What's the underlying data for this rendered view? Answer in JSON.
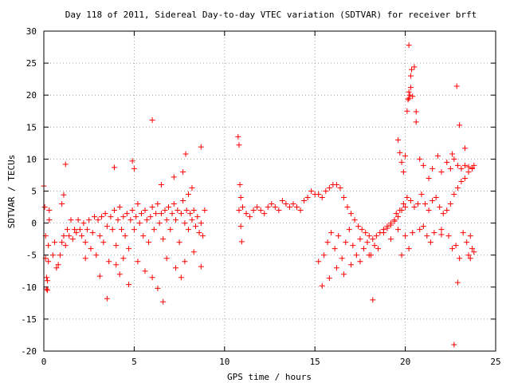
{
  "chart_data": {
    "type": "scatter",
    "title": "Day 118 of 2011, Sidereal Day-to-day VTEC variation (SDTVAR) for receiver brft",
    "xlabel": "GPS time / hours",
    "ylabel": "SDTVAR / TECUs",
    "xlim": [
      0,
      25
    ],
    "ylim": [
      -20,
      30
    ],
    "xticks": [
      "0",
      "5",
      "10",
      "15",
      "20",
      "25"
    ],
    "yticks": [
      "-20",
      "-15",
      "-10",
      "-5",
      "0",
      "5",
      "10",
      "15",
      "20",
      "25",
      "30"
    ],
    "grid": true,
    "marker": "+",
    "color": "#ff0000",
    "series": [
      {
        "name": "",
        "points": [
          [
            0.0,
            5.8
          ],
          [
            0.05,
            2.5
          ],
          [
            0.1,
            -2.0
          ],
          [
            0.1,
            -5.5
          ],
          [
            0.15,
            -8.5
          ],
          [
            0.15,
            -10.3
          ],
          [
            0.2,
            -10.5
          ],
          [
            0.2,
            -9.0
          ],
          [
            0.25,
            -6.0
          ],
          [
            0.25,
            -3.5
          ],
          [
            0.3,
            0.5
          ],
          [
            0.3,
            2.0
          ],
          [
            0.5,
            -5.0
          ],
          [
            0.6,
            -3.0
          ],
          [
            0.7,
            -7.0
          ],
          [
            0.8,
            -6.5
          ],
          [
            0.9,
            -5.0
          ],
          [
            1.0,
            -3.0
          ],
          [
            1.1,
            -2.0
          ],
          [
            1.2,
            -3.5
          ],
          [
            1.3,
            -1.0
          ],
          [
            1.4,
            -2.0
          ],
          [
            1.5,
            0.5
          ],
          [
            1.6,
            -2.5
          ],
          [
            1.7,
            -1.0
          ],
          [
            1.8,
            -1.5
          ],
          [
            1.9,
            0.5
          ],
          [
            2.0,
            -1.0
          ],
          [
            2.1,
            -2.0
          ],
          [
            2.2,
            0.0
          ],
          [
            2.3,
            -3.0
          ],
          [
            2.4,
            -1.0
          ],
          [
            2.5,
            0.5
          ],
          [
            2.6,
            -4.0
          ],
          [
            2.7,
            -1.5
          ],
          [
            2.8,
            1.0
          ],
          [
            2.9,
            -5.0
          ],
          [
            3.0,
            0.5
          ],
          [
            3.1,
            -2.0
          ],
          [
            3.2,
            1.0
          ],
          [
            3.3,
            -3.0
          ],
          [
            3.4,
            1.5
          ],
          [
            3.5,
            -0.5
          ],
          [
            3.6,
            -6.0
          ],
          [
            3.7,
            1.0
          ],
          [
            3.8,
            -1.0
          ],
          [
            3.9,
            2.0
          ],
          [
            4.0,
            -3.5
          ],
          [
            4.1,
            0.5
          ],
          [
            4.2,
            2.5
          ],
          [
            4.3,
            -1.0
          ],
          [
            4.4,
            1.0
          ],
          [
            4.5,
            -2.0
          ],
          [
            4.6,
            1.5
          ],
          [
            4.7,
            -4.0
          ],
          [
            4.8,
            0.5
          ],
          [
            4.9,
            2.0
          ],
          [
            5.0,
            -1.0
          ],
          [
            5.1,
            1.0
          ],
          [
            5.2,
            3.0
          ],
          [
            5.3,
            0.0
          ],
          [
            5.4,
            1.5
          ],
          [
            5.5,
            -2.0
          ],
          [
            5.6,
            2.0
          ],
          [
            5.7,
            0.5
          ],
          [
            5.8,
            -3.0
          ],
          [
            5.9,
            1.0
          ],
          [
            6.0,
            2.5
          ],
          [
            6.1,
            -1.0
          ],
          [
            6.2,
            1.5
          ],
          [
            6.3,
            3.0
          ],
          [
            6.4,
            0.0
          ],
          [
            6.5,
            1.5
          ],
          [
            6.6,
            -2.5
          ],
          [
            6.7,
            2.0
          ],
          [
            6.8,
            0.5
          ],
          [
            6.9,
            2.5
          ],
          [
            7.0,
            -1.0
          ],
          [
            7.1,
            1.5
          ],
          [
            7.2,
            3.0
          ],
          [
            7.3,
            0.5
          ],
          [
            7.4,
            2.0
          ],
          [
            7.5,
            -3.0
          ],
          [
            7.6,
            1.5
          ],
          [
            7.7,
            3.5
          ],
          [
            7.8,
            0.0
          ],
          [
            7.9,
            2.0
          ],
          [
            8.0,
            -1.0
          ],
          [
            8.1,
            1.5
          ],
          [
            8.2,
            0.5
          ],
          [
            8.3,
            2.0
          ],
          [
            8.4,
            -0.5
          ],
          [
            8.5,
            1.0
          ],
          [
            8.6,
            -1.5
          ],
          [
            8.7,
            0.0
          ],
          [
            8.8,
            -2.0
          ],
          [
            8.9,
            2.0
          ],
          [
            1.2,
            9.2
          ],
          [
            1.0,
            3.0
          ],
          [
            1.1,
            4.4
          ],
          [
            3.9,
            8.7
          ],
          [
            4.9,
            9.7
          ],
          [
            5.0,
            8.5
          ],
          [
            6.0,
            16.1
          ],
          [
            7.2,
            7.2
          ],
          [
            7.7,
            8.0
          ],
          [
            7.85,
            10.8
          ],
          [
            8.7,
            11.9
          ],
          [
            8.2,
            5.5
          ],
          [
            8.0,
            4.5
          ],
          [
            6.5,
            6.0
          ],
          [
            2.3,
            -5.5
          ],
          [
            3.1,
            -8.3
          ],
          [
            3.5,
            -11.8
          ],
          [
            4.2,
            -8.0
          ],
          [
            4.7,
            -9.6
          ],
          [
            5.6,
            -7.5
          ],
          [
            6.0,
            -8.5
          ],
          [
            6.3,
            -10.2
          ],
          [
            6.6,
            -12.3
          ],
          [
            7.6,
            -8.5
          ],
          [
            7.8,
            -6.0
          ],
          [
            8.7,
            -6.8
          ],
          [
            4.0,
            -6.5
          ],
          [
            4.4,
            -5.5
          ],
          [
            5.2,
            -6.0
          ],
          [
            6.8,
            -5.5
          ],
          [
            7.3,
            -7.0
          ],
          [
            8.3,
            -4.5
          ],
          [
            10.75,
            13.5
          ],
          [
            10.8,
            12.2
          ],
          [
            10.85,
            6.0
          ],
          [
            10.9,
            4.0
          ],
          [
            10.9,
            -0.5
          ],
          [
            10.95,
            -2.9
          ],
          [
            10.8,
            2.0
          ],
          [
            11.0,
            2.5
          ],
          [
            11.2,
            1.5
          ],
          [
            11.4,
            1.0
          ],
          [
            11.6,
            2.0
          ],
          [
            11.8,
            2.5
          ],
          [
            12.0,
            2.0
          ],
          [
            12.2,
            1.5
          ],
          [
            12.4,
            2.5
          ],
          [
            12.6,
            3.0
          ],
          [
            12.8,
            2.5
          ],
          [
            13.0,
            2.0
          ],
          [
            13.2,
            3.5
          ],
          [
            13.4,
            3.0
          ],
          [
            13.6,
            2.5
          ],
          [
            13.8,
            3.0
          ],
          [
            14.0,
            2.5
          ],
          [
            14.2,
            2.0
          ],
          [
            14.4,
            3.5
          ],
          [
            14.6,
            4.0
          ],
          [
            14.8,
            5.0
          ],
          [
            15.0,
            4.5
          ],
          [
            15.2,
            4.5
          ],
          [
            15.4,
            4.0
          ],
          [
            15.6,
            5.0
          ],
          [
            15.8,
            5.5
          ],
          [
            16.0,
            6.0
          ],
          [
            16.2,
            6.0
          ],
          [
            16.4,
            5.5
          ],
          [
            16.6,
            4.0
          ],
          [
            16.8,
            2.5
          ],
          [
            17.0,
            1.5
          ],
          [
            17.2,
            0.5
          ],
          [
            17.4,
            -0.5
          ],
          [
            17.6,
            -1.0
          ],
          [
            17.8,
            -1.5
          ],
          [
            18.0,
            -2.0
          ],
          [
            18.2,
            -2.5
          ],
          [
            18.4,
            -2.0
          ],
          [
            18.6,
            -1.5
          ],
          [
            18.8,
            -1.0
          ],
          [
            19.0,
            -0.5
          ],
          [
            19.2,
            0.0
          ],
          [
            19.4,
            0.5
          ],
          [
            19.6,
            1.0
          ],
          [
            19.8,
            2.0
          ],
          [
            20.0,
            2.5
          ],
          [
            15.5,
            -5.0
          ],
          [
            15.7,
            -3.0
          ],
          [
            15.9,
            -1.5
          ],
          [
            16.1,
            -4.0
          ],
          [
            16.3,
            -2.0
          ],
          [
            16.5,
            -5.5
          ],
          [
            16.7,
            -3.0
          ],
          [
            16.9,
            -1.0
          ],
          [
            17.1,
            -3.5
          ],
          [
            17.3,
            -5.0
          ],
          [
            17.5,
            -2.5
          ],
          [
            17.7,
            -4.0
          ],
          [
            17.9,
            -3.0
          ],
          [
            18.1,
            -5.0
          ],
          [
            18.3,
            -3.5
          ],
          [
            18.5,
            -4.0
          ],
          [
            15.4,
            -9.8
          ],
          [
            15.8,
            -8.6
          ],
          [
            16.2,
            -7.0
          ],
          [
            17.5,
            -6.0
          ],
          [
            18.2,
            -12.0
          ],
          [
            18.0,
            -5.0
          ],
          [
            15.2,
            -6.0
          ],
          [
            16.6,
            -8.0
          ],
          [
            17.0,
            -6.5
          ],
          [
            18.8,
            -1.5
          ],
          [
            19.0,
            -0.8
          ],
          [
            19.2,
            -0.3
          ],
          [
            19.4,
            0.3
          ],
          [
            19.5,
            1.5
          ],
          [
            19.7,
            2.0
          ],
          [
            19.9,
            3.0
          ],
          [
            20.1,
            4.0
          ],
          [
            20.3,
            3.5
          ],
          [
            20.5,
            2.5
          ],
          [
            20.7,
            3.0
          ],
          [
            20.9,
            4.5
          ],
          [
            21.1,
            3.0
          ],
          [
            21.3,
            2.0
          ],
          [
            21.5,
            3.5
          ],
          [
            21.7,
            4.0
          ],
          [
            21.9,
            2.5
          ],
          [
            22.1,
            1.5
          ],
          [
            22.3,
            2.0
          ],
          [
            22.5,
            3.0
          ],
          [
            22.7,
            4.5
          ],
          [
            22.9,
            5.5
          ],
          [
            23.1,
            6.5
          ],
          [
            23.3,
            7.0
          ],
          [
            23.5,
            8.0
          ],
          [
            23.7,
            8.5
          ],
          [
            23.8,
            9.0
          ],
          [
            19.2,
            -2.5
          ],
          [
            19.6,
            -1.0
          ],
          [
            20.0,
            -2.0
          ],
          [
            20.4,
            -1.5
          ],
          [
            20.8,
            -1.0
          ],
          [
            21.2,
            -2.0
          ],
          [
            21.6,
            -1.5
          ],
          [
            22.0,
            -1.0
          ],
          [
            22.4,
            -2.0
          ],
          [
            22.8,
            -3.5
          ],
          [
            23.2,
            -1.5
          ],
          [
            23.6,
            -2.0
          ],
          [
            23.8,
            -4.5
          ],
          [
            21.0,
            -0.5
          ],
          [
            22.0,
            -1.8
          ],
          [
            19.8,
            -5.0
          ],
          [
            20.2,
            -4.0
          ],
          [
            21.4,
            -3.0
          ],
          [
            22.6,
            -4.0
          ],
          [
            23.0,
            -5.5
          ],
          [
            23.4,
            -3.0
          ],
          [
            23.7,
            -4.0
          ],
          [
            19.6,
            13.0
          ],
          [
            19.7,
            11.0
          ],
          [
            19.8,
            9.5
          ],
          [
            19.9,
            8.0
          ],
          [
            20.0,
            10.5
          ],
          [
            20.1,
            17.5
          ],
          [
            20.15,
            19.3
          ],
          [
            20.2,
            20.5
          ],
          [
            20.25,
            20.0
          ],
          [
            20.3,
            23.0
          ],
          [
            20.35,
            24.0
          ],
          [
            20.3,
            21.2
          ],
          [
            20.2,
            19.5
          ],
          [
            20.2,
            27.8
          ],
          [
            20.4,
            19.8
          ],
          [
            20.5,
            24.4
          ],
          [
            20.6,
            17.4
          ],
          [
            20.6,
            15.8
          ],
          [
            20.8,
            10.0
          ],
          [
            21.0,
            9.0
          ],
          [
            21.3,
            7.0
          ],
          [
            21.5,
            8.5
          ],
          [
            21.8,
            10.5
          ],
          [
            22.0,
            8.0
          ],
          [
            22.3,
            9.5
          ],
          [
            22.5,
            8.5
          ],
          [
            22.7,
            10.0
          ],
          [
            22.9,
            9.0
          ],
          [
            23.1,
            8.5
          ],
          [
            23.3,
            9.0
          ],
          [
            23.5,
            8.8
          ],
          [
            23.7,
            8.6
          ],
          [
            22.6,
            10.8
          ],
          [
            22.85,
            21.4
          ],
          [
            23.0,
            15.3
          ],
          [
            23.3,
            11.7
          ],
          [
            22.9,
            -9.3
          ],
          [
            22.7,
            -19.0
          ],
          [
            23.5,
            -5.0
          ],
          [
            23.6,
            -5.5
          ]
        ]
      }
    ]
  }
}
